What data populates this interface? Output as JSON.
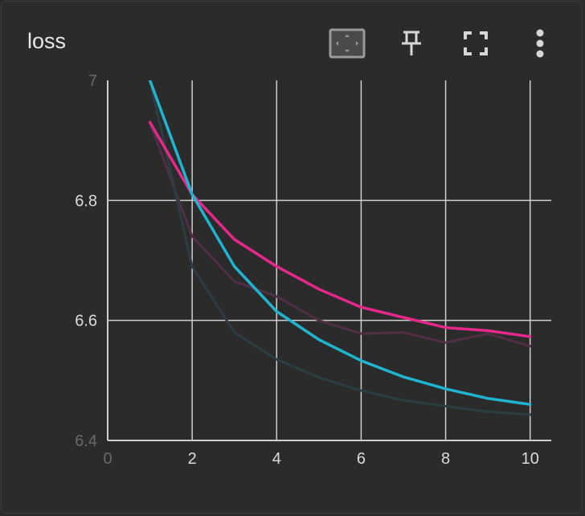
{
  "card": {
    "title": "loss"
  },
  "toolbar": {
    "icons": [
      "fit-domain-icon",
      "pin-icon",
      "fullscreen-icon",
      "more-vert-icon"
    ]
  },
  "colors": {
    "background": "#2b2b2b",
    "grid": "#cfcfcf",
    "text": "#dcdcdc"
  },
  "chart_data": {
    "type": "line",
    "title": "loss",
    "xlabel": "",
    "ylabel": "",
    "xlim": [
      0,
      10.5
    ],
    "ylim": [
      6.4,
      7.0
    ],
    "x_ticks": [
      "0",
      "2",
      "4",
      "6",
      "8",
      "10"
    ],
    "y_ticks": [
      "6.4",
      "6.6",
      "6.8",
      "7"
    ],
    "grid": true,
    "series": [
      {
        "color": "#e6288a",
        "style": "smoothed",
        "x": [
          1,
          2,
          3,
          4,
          5,
          6,
          7,
          8,
          9,
          10
        ],
        "values": [
          6.93,
          6.81,
          6.735,
          6.69,
          6.652,
          6.622,
          6.605,
          6.588,
          6.583,
          6.573
        ]
      },
      {
        "color": "#512f46",
        "style": "raw",
        "x": [
          1,
          2,
          3,
          4,
          5,
          6,
          7,
          8,
          9,
          10
        ],
        "values": [
          6.93,
          6.74,
          6.665,
          6.64,
          6.6,
          6.578,
          6.58,
          6.563,
          6.578,
          6.557
        ]
      },
      {
        "color": "#1fb4cf",
        "style": "smoothed",
        "x": [
          1,
          2,
          3,
          4,
          5,
          6,
          7,
          8,
          9,
          10
        ],
        "values": [
          7.0,
          6.81,
          6.69,
          6.615,
          6.568,
          6.533,
          6.506,
          6.486,
          6.47,
          6.46
        ]
      },
      {
        "color": "#2c3e42",
        "style": "raw",
        "x": [
          1,
          2,
          3,
          4,
          5,
          6,
          7,
          8,
          9,
          10
        ],
        "values": [
          7.0,
          6.69,
          6.58,
          6.535,
          6.505,
          6.483,
          6.467,
          6.457,
          6.448,
          6.443
        ]
      }
    ]
  }
}
